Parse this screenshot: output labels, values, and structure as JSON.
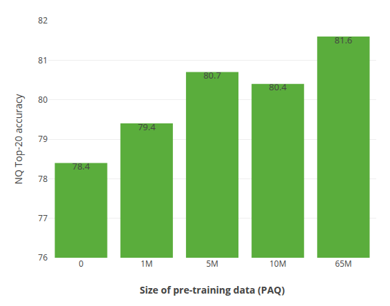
{
  "chart_data": {
    "type": "bar",
    "categories": [
      "0",
      "1M",
      "5M",
      "10M",
      "65M"
    ],
    "values": [
      78.4,
      79.4,
      80.7,
      80.4,
      81.6
    ],
    "color": "#5aad3c",
    "xlabel": "Size of pre-training data (PAQ)",
    "ylabel": "NQ Top-20 accuracy",
    "ylim": [
      76,
      82
    ],
    "yticks": [
      76,
      77,
      78,
      79,
      80,
      81,
      82
    ],
    "grid": true,
    "data_labels": true
  }
}
